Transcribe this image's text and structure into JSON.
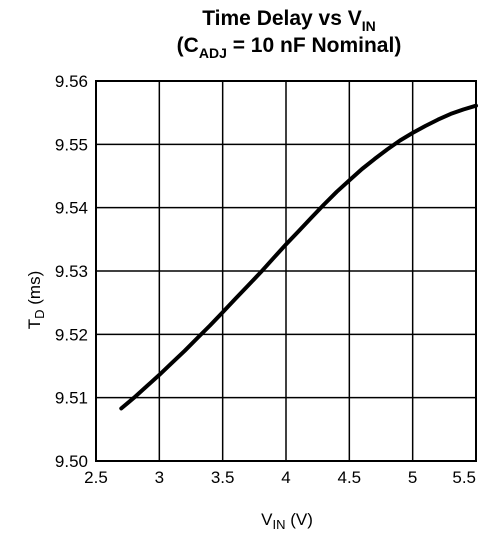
{
  "chart_data": {
    "type": "line",
    "title_line1": "Time Delay vs V",
    "title_line1_sub": "IN",
    "title_line2_pre": "(C",
    "title_line2_sub": "ADJ",
    "title_line2_post": " = 10 nF Nominal)",
    "xlabel_main": "V",
    "xlabel_sub": "IN",
    "xlabel_unit": " (V)",
    "ylabel_main": "T",
    "ylabel_sub": "D",
    "ylabel_unit": " (ms)",
    "xlim": [
      2.5,
      5.5
    ],
    "ylim": [
      9.5,
      9.56
    ],
    "x_ticks": [
      2.5,
      3,
      3.5,
      4,
      4.5,
      5,
      5.5
    ],
    "x_tick_labels": [
      "2.5",
      "3",
      "3.5",
      "4",
      "4.5",
      "5",
      "5.5"
    ],
    "y_ticks": [
      9.5,
      9.51,
      9.52,
      9.53,
      9.54,
      9.55,
      9.56
    ],
    "y_tick_labels": [
      "9.50",
      "9.51",
      "9.52",
      "9.53",
      "9.54",
      "9.55",
      "9.56"
    ],
    "grid": true,
    "line_color": "#000000",
    "series": [
      {
        "x": [
          2.7,
          2.8,
          2.9,
          3.0,
          3.1,
          3.2,
          3.3,
          3.4,
          3.5,
          3.6,
          3.7,
          3.8,
          3.9,
          4.0,
          4.1,
          4.2,
          4.3,
          4.4,
          4.5,
          4.6,
          4.7,
          4.8,
          4.9,
          5.0,
          5.1,
          5.2,
          5.3,
          5.4,
          5.5
        ],
        "y": [
          9.5083,
          9.51,
          9.5118,
          9.5136,
          9.5155,
          9.5174,
          9.5194,
          9.5214,
          9.5235,
          9.5256,
          9.5277,
          9.5298,
          9.532,
          9.5342,
          9.5363,
          9.5384,
          9.5405,
          9.5425,
          9.5443,
          9.5461,
          9.5477,
          9.5492,
          9.5506,
          9.5518,
          9.5529,
          9.5539,
          9.5548,
          9.5555,
          9.5561
        ]
      }
    ]
  }
}
